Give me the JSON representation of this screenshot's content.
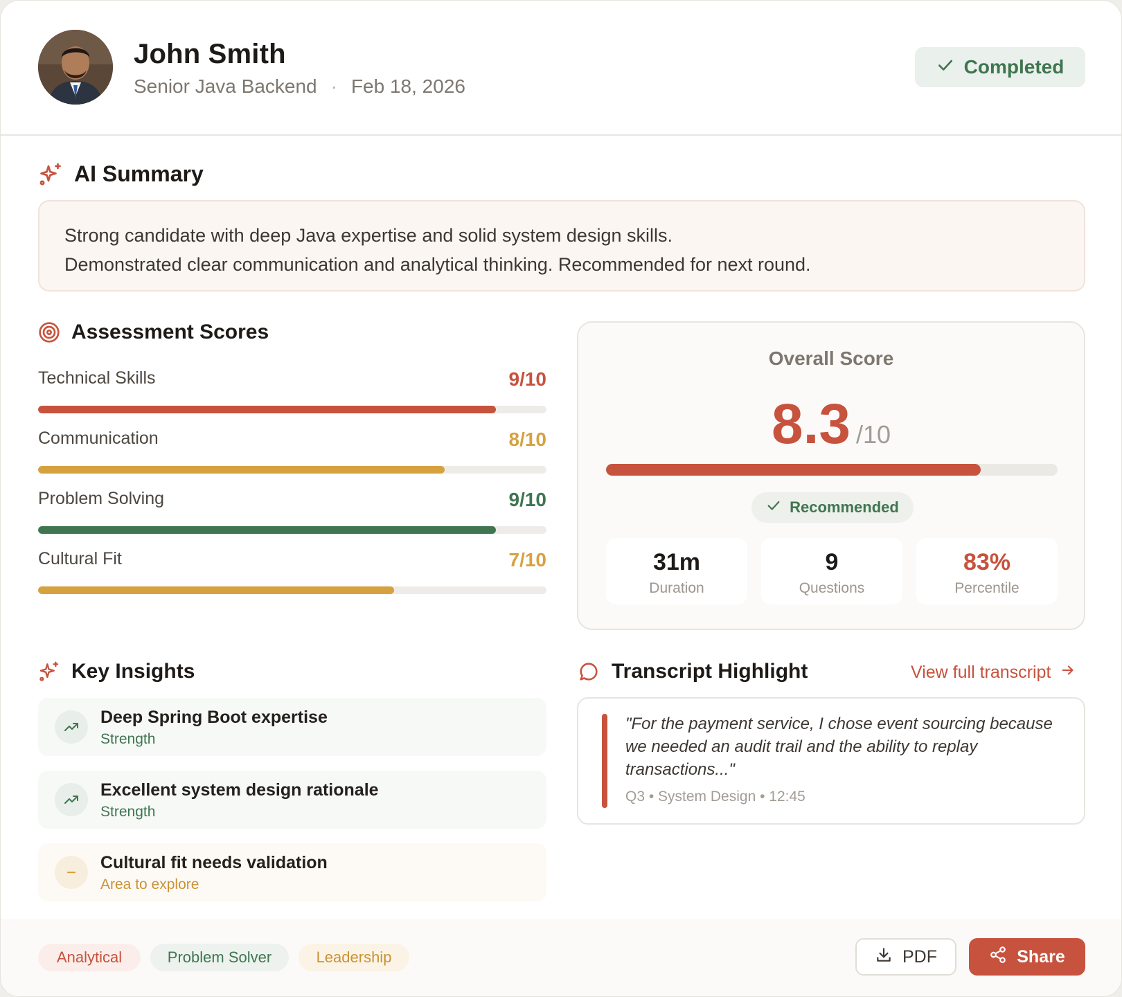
{
  "colors": {
    "accent": "#c7523d",
    "green": "#3f7550",
    "amber": "#d6a23f",
    "muted": "#7d7770"
  },
  "header": {
    "name": "John Smith",
    "role": "Senior Java Backend",
    "separator": "·",
    "date": "Feb 18, 2026",
    "status": "Completed",
    "status_icon": "check-icon"
  },
  "summary": {
    "title": "AI Summary",
    "line1": "Strong candidate with deep Java expertise and solid system design skills.",
    "line2": "Demonstrated clear communication and analytical thinking. Recommended for next round."
  },
  "assessment": {
    "title": "Assessment Scores",
    "scores": [
      {
        "label": "Technical Skills",
        "value": "9/10",
        "fraction": 0.9,
        "color": "#c7523d"
      },
      {
        "label": "Communication",
        "value": "8/10",
        "fraction": 0.8,
        "color": "#d6a23f"
      },
      {
        "label": "Problem Solving",
        "value": "9/10",
        "fraction": 0.9,
        "color": "#3f7550"
      },
      {
        "label": "Cultural Fit",
        "value": "7/10",
        "fraction": 0.7,
        "color": "#d6a23f"
      }
    ]
  },
  "overall": {
    "title": "Overall Score",
    "score": "8.3",
    "out_of": "/10",
    "fraction": 0.83,
    "recommendation": "Recommended",
    "stats": [
      {
        "value": "31m",
        "label": "Duration",
        "color": "#1d1a17"
      },
      {
        "value": "9",
        "label": "Questions",
        "color": "#1d1a17"
      },
      {
        "value": "83%",
        "label": "Percentile",
        "color": "#c7523d"
      }
    ]
  },
  "insights": {
    "title": "Key Insights",
    "items": [
      {
        "title": "Deep Spring Boot expertise",
        "type": "Strength",
        "icon": "trending-up-icon"
      },
      {
        "title": "Excellent system design rationale",
        "type": "Strength",
        "icon": "trending-up-icon"
      },
      {
        "title": "Cultural fit needs validation",
        "type": "Area to explore",
        "icon": "minus-icon"
      }
    ]
  },
  "transcript": {
    "title": "Transcript Highlight",
    "link": "View full transcript",
    "quote": "\"For the payment service, I chose event sourcing because we needed an audit trail and the ability to replay transactions...\"",
    "meta": "Q3 • System Design • 12:45"
  },
  "footer": {
    "tags": [
      "Analytical",
      "Problem Solver",
      "Leadership"
    ],
    "pdf_label": "PDF",
    "share_label": "Share"
  }
}
